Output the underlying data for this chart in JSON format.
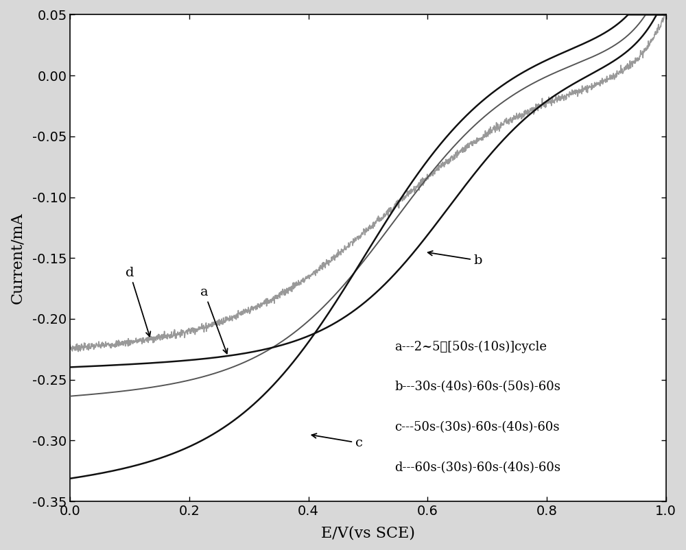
{
  "xlabel": "E/V(vs SCE)",
  "ylabel": "Current/mA",
  "xlim": [
    0.0,
    1.0
  ],
  "ylim": [
    -0.35,
    0.05
  ],
  "xticks": [
    0.0,
    0.2,
    0.4,
    0.6,
    0.8,
    1.0
  ],
  "yticks": [
    -0.35,
    -0.3,
    -0.25,
    -0.2,
    -0.15,
    -0.1,
    -0.05,
    0.0,
    0.05
  ],
  "legend_texts": [
    "a---2~5个[50s-(10s)]cycle",
    "b---30s-(40s)-60s-(50s)-60s",
    "c---50s-(30s)-60s-(40s)-60s",
    "d---60s-(30s)-60s-(40s)-60s"
  ],
  "curve_a_color": "#555555",
  "curve_b_color": "#111111",
  "curve_c_color": "#111111",
  "curve_d_color": "#999999",
  "curve_a_lw": 1.4,
  "curve_b_lw": 1.8,
  "curve_c_lw": 1.8,
  "curve_d_lw": 1.2,
  "annotation_font_size": 14,
  "axis_font_size": 16,
  "tick_font_size": 14,
  "legend_font_size": 13,
  "figure_bg": "#d8d8d8",
  "axes_bg": "#ffffff"
}
